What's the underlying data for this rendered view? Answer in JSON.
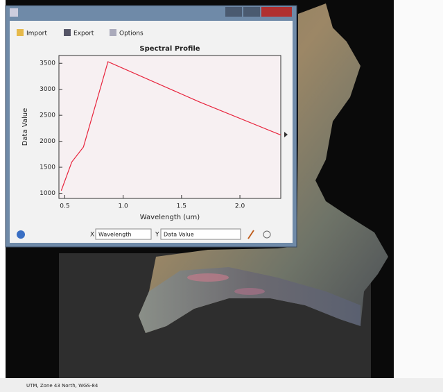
{
  "toolbar": {
    "import": "Import",
    "export": "Export",
    "options": "Options"
  },
  "chart_data": {
    "type": "line",
    "title": "Spectral Profile",
    "x_label": "Wavelength (um)",
    "y_label": "Data Value",
    "x": [
      0.47,
      0.56,
      0.66,
      0.87,
      1.65,
      2.35
    ],
    "series": [
      {
        "color": "#e8233c",
        "values": [
          1050,
          1600,
          1890,
          3530,
          2760,
          2120
        ]
      }
    ],
    "xlim": [
      0.45,
      2.35
    ],
    "ylim": [
      900,
      3650
    ],
    "xticks": [
      0.5,
      {
        "value": 1,
        "label": "1.0"
      },
      1.5,
      {
        "value": 2,
        "label": "2.0"
      }
    ],
    "yticks": [
      1000,
      1500,
      2000,
      2500,
      3000,
      3500
    ]
  },
  "controls": {
    "x_label": "X",
    "x_value": "Wavelength",
    "y_label": "Y",
    "y_value": "Data Value"
  },
  "status_bar": "UTM, Zone 43 North, WGS-84"
}
